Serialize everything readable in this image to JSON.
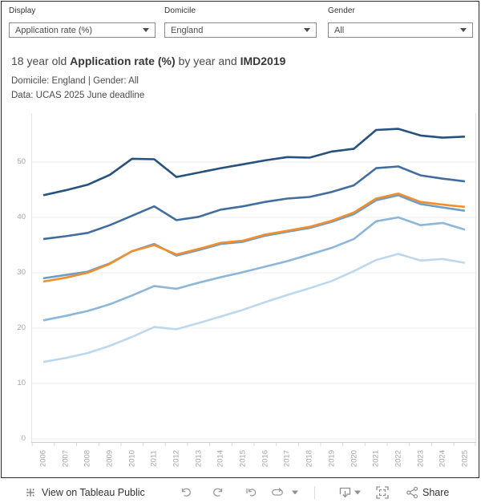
{
  "filters": {
    "display": {
      "label": "Display",
      "value": "Application rate (%)"
    },
    "domicile": {
      "label": "Domicile",
      "value": "England"
    },
    "gender": {
      "label": "Gender",
      "value": "All"
    }
  },
  "title": {
    "prefix": "18 year old ",
    "bold1": "Application rate (%)",
    "middle": " by year and ",
    "bold2": "IMD2019",
    "subtitle": "Domicile: England | Gender: All",
    "source": "Data: UCAS 2025 June deadline"
  },
  "chart_data": {
    "type": "line",
    "x": [
      2006,
      2007,
      2008,
      2009,
      2010,
      2011,
      2012,
      2013,
      2014,
      2015,
      2016,
      2017,
      2018,
      2019,
      2020,
      2021,
      2022,
      2023,
      2024,
      2025
    ],
    "yticks": [
      0,
      10,
      20,
      30,
      40,
      50
    ],
    "ylim": [
      0,
      58.8
    ],
    "grid": "horizontal",
    "legend": "none (no legend shown)",
    "xlabel": "",
    "ylabel": "",
    "series": [
      {
        "name": "darkest-blue-top-line",
        "color": "#27527d",
        "values": [
          44.0,
          44.9,
          45.9,
          47.7,
          50.6,
          50.5,
          47.3,
          48.1,
          48.9,
          49.6,
          50.3,
          50.9,
          50.8,
          51.9,
          52.4,
          55.8,
          56.0,
          54.8,
          54.4,
          54.6
        ]
      },
      {
        "name": "dark-blue-line",
        "color": "#416e9f",
        "values": [
          36.1,
          36.6,
          37.2,
          38.6,
          40.3,
          42.0,
          39.5,
          40.1,
          41.4,
          42.0,
          42.8,
          43.4,
          43.7,
          44.6,
          45.8,
          48.9,
          49.2,
          47.6,
          47.0,
          46.5
        ]
      },
      {
        "name": "medium-blue-line",
        "color": "#6d9dc9",
        "values": [
          29.0,
          29.6,
          30.2,
          31.7,
          33.9,
          35.2,
          33.1,
          34.1,
          35.2,
          35.6,
          36.7,
          37.4,
          38.1,
          39.2,
          40.6,
          43.1,
          44.0,
          42.4,
          41.8,
          41.2
        ]
      },
      {
        "name": "light-blue-line",
        "color": "#8cb6da",
        "values": [
          21.4,
          22.2,
          23.1,
          24.3,
          25.9,
          27.6,
          27.1,
          28.2,
          29.2,
          30.1,
          31.1,
          32.1,
          33.3,
          34.5,
          36.1,
          39.3,
          40.0,
          38.6,
          39.0,
          37.8
        ]
      },
      {
        "name": "pale-blue-line",
        "color": "#bdd8ec",
        "values": [
          13.9,
          14.6,
          15.5,
          16.8,
          18.4,
          20.2,
          19.8,
          20.9,
          22.1,
          23.3,
          24.7,
          26.0,
          27.2,
          28.5,
          30.3,
          32.3,
          33.4,
          32.2,
          32.5,
          31.8
        ]
      },
      {
        "name": "orange-line",
        "color": "#f28e2b",
        "values": [
          28.4,
          29.1,
          30.0,
          31.6,
          33.9,
          35.0,
          33.3,
          34.3,
          35.4,
          35.8,
          36.9,
          37.6,
          38.3,
          39.4,
          40.9,
          43.4,
          44.3,
          42.8,
          42.3,
          41.9
        ]
      }
    ]
  },
  "toolbar": {
    "view_label": "View on Tableau Public",
    "share_label": "Share",
    "icons": [
      "tableau-logo",
      "undo",
      "redo",
      "revert",
      "replay",
      "replay-caret",
      "download",
      "download-caret",
      "fullscreen",
      "share"
    ]
  },
  "colors": {
    "accent_orange": "#f28e2b",
    "grid": "#ececec",
    "axis_line": "#cfcfcf",
    "tick_label": "#a6a6a6",
    "icon_gray": "#9a9a9a"
  }
}
